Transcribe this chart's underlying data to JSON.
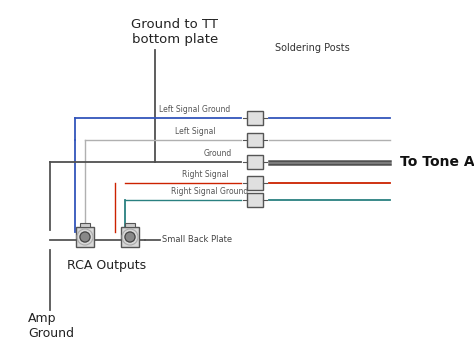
{
  "bg_color": "#ffffff",
  "wire_colors": {
    "left_signal_ground": "#3355bb",
    "left_signal": "#b0b0b0",
    "ground": "#505050",
    "right_signal": "#cc2200",
    "right_signal_ground": "#2a8080"
  },
  "labels": {
    "title_top": "Ground to TT\nbottom plate",
    "soldering_posts": "Soldering Posts",
    "left_signal_ground": "Left Signal Ground",
    "left_signal": "Left Signal",
    "ground": "Ground",
    "right_signal": "Right Signal",
    "right_signal_ground": "Right Signal Ground",
    "small_back_plate": "Small Back Plate",
    "rca_outputs": "RCA Outputs",
    "amp_ground": "Amp\nGround",
    "to_tone_arm": "To Tone Arm"
  },
  "figsize": [
    4.74,
    3.38
  ],
  "dpi": 100
}
